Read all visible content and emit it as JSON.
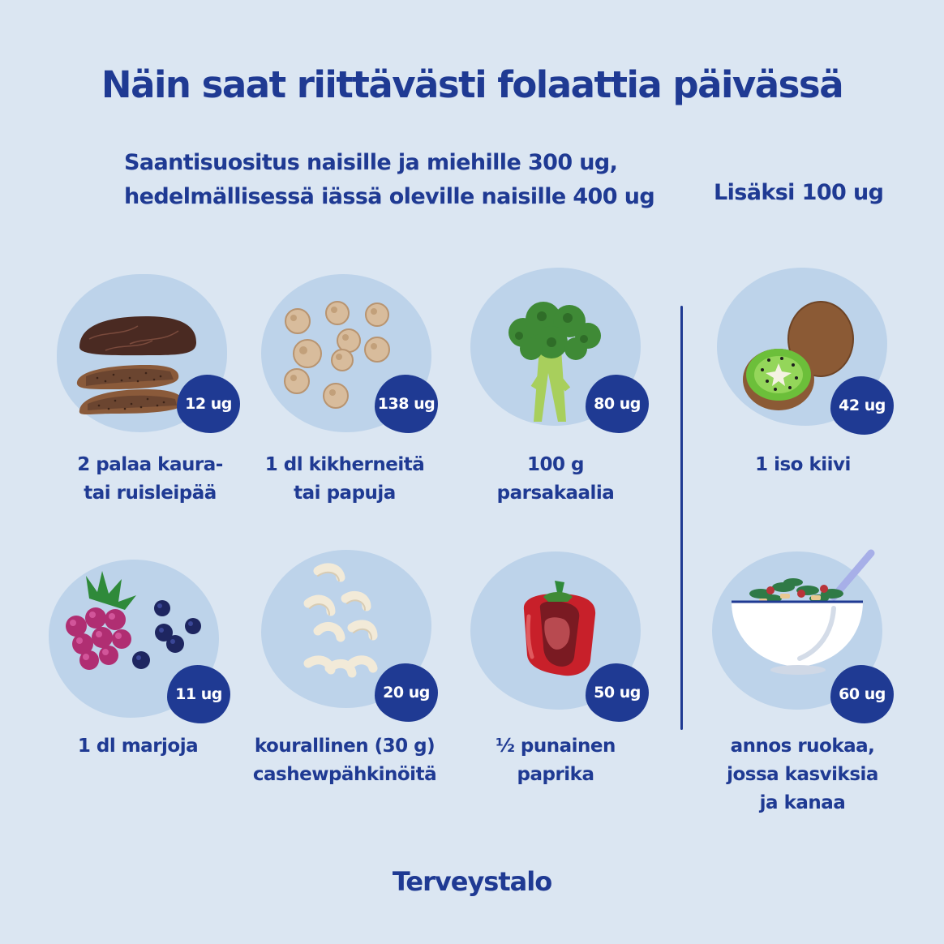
{
  "title": "Näin saat riittävästi folaattia päivässä",
  "subtitle": {
    "line1": "Saantisuositus naisille ja miehille 300 ug,",
    "line2": "hedelmällisessä iässä oleville naisille 400 ug"
  },
  "extra_label": "Lisäksi 100 ug",
  "items": [
    {
      "amount": "12 ug",
      "label": "2 palaa kaura-\ntai ruisleipää",
      "icon": "rye-bread-icon"
    },
    {
      "amount": "138 ug",
      "label": "1 dl kikherneitä\ntai papuja",
      "icon": "chickpeas-icon"
    },
    {
      "amount": "80 ug",
      "label": "100 g\nparsakaalia",
      "icon": "broccoli-icon"
    },
    {
      "amount": "42 ug",
      "label": "1 iso kiivi",
      "icon": "kiwi-icon"
    },
    {
      "amount": "11 ug",
      "label": "1 dl marjoja",
      "icon": "berries-icon"
    },
    {
      "amount": "20 ug",
      "label": "kourallinen (30 g)\ncashewpähkinöitä",
      "icon": "cashews-icon"
    },
    {
      "amount": "50 ug",
      "label": "½ punainen\npaprika",
      "icon": "red-pepper-icon"
    },
    {
      "amount": "60 ug",
      "label": "annos ruokaa,\njossa kasviksia\nja kanaa",
      "icon": "salad-bowl-icon"
    }
  ],
  "brand": "Terveystalo",
  "colors": {
    "background": "#dbe6f2",
    "circle": "#bdd3ea",
    "text": "#1f3a93",
    "badge": "#1f3a93"
  }
}
